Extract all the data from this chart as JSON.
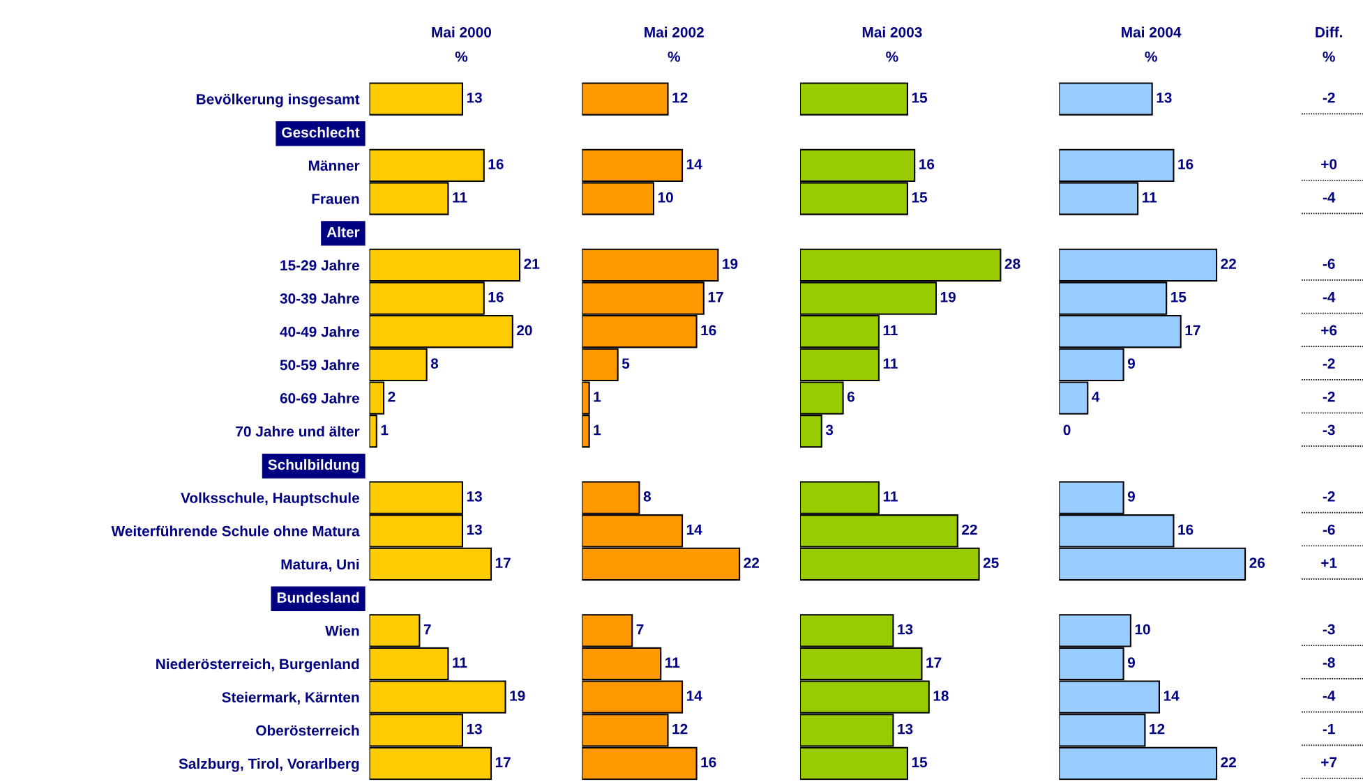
{
  "chart_data": [
    {
      "type": "bar",
      "orientation": "horizontal",
      "title": "Mai 2000",
      "subtitle": "%",
      "data_labels": true,
      "tick_labels": "y",
      "categories": [
        "Bevölkerung insgesamt",
        "Geschlecht",
        "Männer",
        "Frauen",
        "Alter",
        "15-29 Jahre",
        "30-39 Jahre",
        "40-49 Jahre",
        "50-59 Jahre",
        "60-69 Jahre",
        "70 Jahre und älter",
        "Schulbildung",
        "Volksschule, Hauptschule",
        "Weiterführende Schule ohne Matura",
        "Matura, Uni",
        "Bundesland",
        "Wien",
        "Niederösterreich, Burgenland",
        "Steiermark, Kärnten",
        "Oberösterreich",
        "Salzburg, Tirol, Vorarlberg"
      ],
      "series": [
        {
          "color": "#ffcc00",
          "values": [
            13,
            null,
            16,
            11,
            null,
            21,
            16,
            20,
            8,
            2,
            1,
            null,
            13,
            13,
            17,
            null,
            7,
            11,
            19,
            13,
            17
          ]
        }
      ]
    },
    {
      "type": "bar",
      "orientation": "horizontal",
      "title": "Mai 2002",
      "subtitle": "%",
      "data_labels": true,
      "tick_labels": false,
      "series": [
        {
          "color": "#ff9900",
          "values": [
            12,
            null,
            14,
            10,
            null,
            19,
            17,
            16,
            5,
            1,
            1,
            null,
            8,
            14,
            22,
            null,
            7,
            11,
            14,
            12,
            16
          ]
        }
      ]
    },
    {
      "type": "bar",
      "orientation": "horizontal",
      "title": "Mai 2003",
      "subtitle": "%",
      "data_labels": true,
      "tick_labels": false,
      "series": [
        {
          "color": "#99cc00",
          "values": [
            15,
            null,
            16,
            15,
            null,
            28,
            19,
            11,
            11,
            6,
            3,
            null,
            11,
            22,
            25,
            null,
            13,
            17,
            18,
            13,
            15
          ]
        }
      ]
    },
    {
      "type": "bar",
      "orientation": "horizontal",
      "title": "Mai 2004",
      "subtitle": "%",
      "data_labels": true,
      "tick_labels": false,
      "series": [
        {
          "color": "#99ccff",
          "values": [
            13,
            null,
            16,
            11,
            null,
            22,
            15,
            17,
            9,
            4,
            0,
            null,
            9,
            16,
            26,
            null,
            10,
            9,
            14,
            12,
            22
          ]
        }
      ]
    },
    {
      "type": "other",
      "title": "Diff.",
      "subtitle": "%",
      "values": [
        -2,
        null,
        0,
        -4,
        null,
        -6,
        -4,
        6,
        -2,
        -2,
        -3,
        null,
        -2,
        -6,
        1,
        null,
        -3,
        -8,
        -4,
        -1,
        7
      ],
      "value_labels": [
        "-2",
        null,
        "+0",
        "-4",
        null,
        "-6",
        "-4",
        "+6",
        "-2",
        "-2",
        "-3",
        null,
        "-2",
        "-6",
        "+1",
        null,
        "-3",
        "-8",
        "-4",
        "-1",
        "+7"
      ]
    }
  ]
}
